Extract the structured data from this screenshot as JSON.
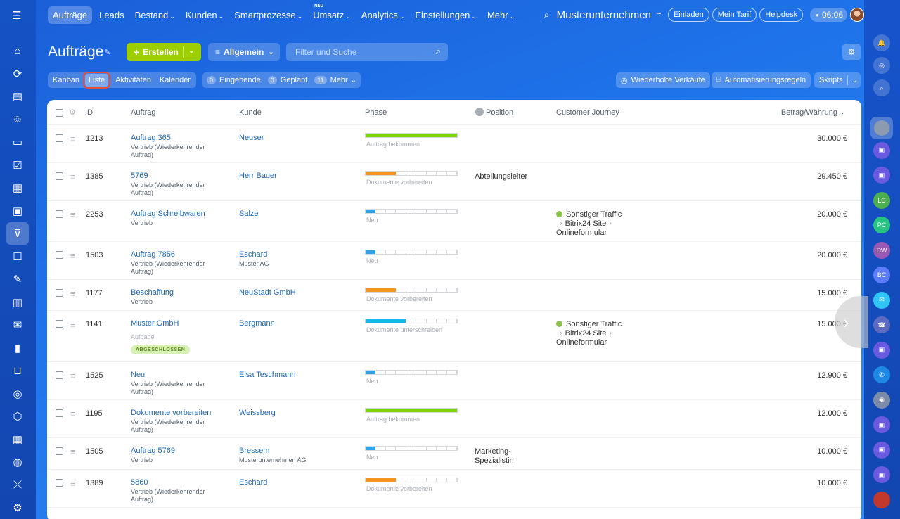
{
  "nav": {
    "items": [
      {
        "label": "Aufträge",
        "caret": false,
        "active": true
      },
      {
        "label": "Leads",
        "caret": false
      },
      {
        "label": "Bestand",
        "caret": true
      },
      {
        "label": "Kunden",
        "caret": true
      },
      {
        "label": "Smartprozesse",
        "caret": true
      },
      {
        "label": "Umsatz",
        "caret": true,
        "badge": "NEU"
      },
      {
        "label": "Analytics",
        "caret": true
      },
      {
        "label": "Einstellungen",
        "caret": true
      },
      {
        "label": "Mehr",
        "caret": true
      }
    ],
    "company": "Musterunternehmen",
    "invite": "Einladen",
    "tariff": "Mein Tarif",
    "help": "Helpdesk",
    "time": "06:06"
  },
  "header": {
    "title": "Aufträge",
    "create": "Erstellen",
    "filter": "Allgemein",
    "search_placeholder": "Filter und Suche"
  },
  "views": [
    "Kanban",
    "Liste",
    "Aktivitäten",
    "Kalender"
  ],
  "counters": [
    {
      "count": "0",
      "label": "Eingehende"
    },
    {
      "count": "0",
      "label": "Geplant"
    },
    {
      "count": "11",
      "label": "Mehr"
    }
  ],
  "tools": {
    "repeat": "Wiederholte Verkäufe",
    "automation": "Automatisierungsregeln",
    "scripts": "Skripts"
  },
  "table": {
    "headers": {
      "id": "ID",
      "deal": "Auftrag",
      "client": "Kunde",
      "phase": "Phase",
      "position": "Position",
      "journey": "Customer Journey",
      "amount": "Betrag/Währung"
    },
    "rows": [
      {
        "id": "1213",
        "name": "Auftrag 365",
        "sub": "Vertrieb (Wiederkehrender Auftrag)",
        "client": "Neuser",
        "client_sub": "",
        "phase": "Auftrag bekommen",
        "phase_color": "#7bd500",
        "phase_progress": 1.0,
        "position": "",
        "journey": [],
        "amount": "30.000 €"
      },
      {
        "id": "1385",
        "name": "5769",
        "sub": "Vertrieb (Wiederkehrender Auftrag)",
        "client": "Herr Bauer",
        "client_sub": "",
        "phase": "Dokumente vorbereiten",
        "phase_color": "#f7941d",
        "phase_progress": 0.33,
        "position": "Abteilungsleiter",
        "journey": [],
        "amount": "29.450 €"
      },
      {
        "id": "2253",
        "name": "Auftrag Schreibwaren",
        "sub": "Vertrieb",
        "client": "Salze",
        "client_sub": "",
        "phase": "Neu",
        "phase_color": "#2fa3e6",
        "phase_progress": 0.11,
        "position": "",
        "journey": [
          "Sonstiger Traffic",
          "Bitrix24 Site",
          "Onlineformular"
        ],
        "amount": "20.000 €"
      },
      {
        "id": "1503",
        "name": "Auftrag 7856",
        "sub": "Vertrieb (Wiederkehrender Auftrag)",
        "client": "Eschard",
        "client_sub": "Muster AG",
        "phase": "Neu",
        "phase_color": "#2fa3e6",
        "phase_progress": 0.11,
        "position": "",
        "journey": [],
        "amount": "20.000 €"
      },
      {
        "id": "1177",
        "name": "Beschaffung",
        "sub": "Vertrieb",
        "client": "NeuStadt GmbH",
        "client_sub": "",
        "phase": "Dokumente vorbereiten",
        "phase_color": "#f7941d",
        "phase_progress": 0.33,
        "position": "",
        "journey": [],
        "amount": "15.000 €"
      },
      {
        "id": "1141",
        "name": "Muster GmbH",
        "sub": "",
        "task": "Aufgabe",
        "badge": "ABGESCHLOSSEN",
        "client": "Bergmann",
        "client_sub": "",
        "phase": "Dokumente unterschreiben",
        "phase_color": "#12b8e8",
        "phase_progress": 0.44,
        "position": "",
        "journey": [
          "Sonstiger Traffic",
          "Bitrix24 Site",
          "Onlineformular"
        ],
        "amount": "15.000 €"
      },
      {
        "id": "1525",
        "name": "Neu",
        "sub": "Vertrieb (Wiederkehrender Auftrag)",
        "client": "Elsa Teschmann",
        "client_sub": "",
        "phase": "Neu",
        "phase_color": "#2fa3e6",
        "phase_progress": 0.11,
        "position": "",
        "journey": [],
        "amount": "12.900 €"
      },
      {
        "id": "1195",
        "name": "Dokumente vorbereiten",
        "sub": "Vertrieb (Wiederkehrender Auftrag)",
        "client": "Weissberg",
        "client_sub": "",
        "phase": "Auftrag bekommen",
        "phase_color": "#7bd500",
        "phase_progress": 1.0,
        "position": "",
        "journey": [],
        "amount": "12.000 €"
      },
      {
        "id": "1505",
        "name": "Auftrag 5769",
        "sub": "Vertrieb",
        "client": "Bressem",
        "client_sub": "Musterunternehmen AG",
        "phase": "Neu",
        "phase_color": "#2fa3e6",
        "phase_progress": 0.11,
        "position": "Marketing-Spezialistin",
        "journey": [],
        "amount": "10.000 €"
      },
      {
        "id": "1389",
        "name": "5860",
        "sub": "Vertrieb (Wiederkehrender Auftrag)",
        "client": "Eschard",
        "client_sub": "",
        "phase": "Dokumente vorbereiten",
        "phase_color": "#f7941d",
        "phase_progress": 0.33,
        "position": "",
        "journey": [],
        "amount": "10.000 €"
      }
    ]
  },
  "leftbar_icons": [
    "home-icon",
    "flow-icon",
    "tasks-icon",
    "contacts-icon",
    "inbox-icon",
    "checklist-icon",
    "calendar-icon",
    "sites-icon",
    "crm-icon",
    "chat-icon",
    "sign-icon",
    "store-icon",
    "mail-icon",
    "analytics-icon",
    "cart-icon",
    "marketing-icon",
    "products-icon",
    "planner-icon",
    "automation-icon",
    "more-icon",
    "settings-icon"
  ],
  "rightbar_icons": [
    {
      "name": "bell-icon",
      "text": "🔔",
      "color": "rgba(255,255,255,.2)"
    },
    {
      "name": "copilot-icon",
      "text": "◎",
      "color": "rgba(255,255,255,.2)"
    },
    {
      "name": "search-chat-icon",
      "text": "⌕",
      "color": "rgba(255,255,255,.2)"
    },
    {
      "name": "user-avatar",
      "text": "",
      "color": "#9aa7b8"
    },
    {
      "name": "chat-1-icon",
      "text": "▣",
      "color": "#6a5ae0"
    },
    {
      "name": "chat-2-icon",
      "text": "▣",
      "color": "#6a5ae0"
    },
    {
      "name": "chat-lc-icon",
      "text": "LC",
      "color": "#4caf50"
    },
    {
      "name": "chat-pc-icon",
      "text": "PC",
      "color": "#26c281"
    },
    {
      "name": "chat-dw-icon",
      "text": "DW",
      "color": "#9b59b6"
    },
    {
      "name": "chat-bc-icon",
      "text": "BC",
      "color": "#5c7cfa"
    },
    {
      "name": "chat-message-icon",
      "text": "✉",
      "color": "#2fc6f6"
    },
    {
      "name": "call-icon",
      "text": "☎",
      "color": "#5c6bc0"
    },
    {
      "name": "chat-3-icon",
      "text": "▣",
      "color": "#6a5ae0"
    },
    {
      "name": "phone-icon",
      "text": "✆",
      "color": "#1e88e5"
    },
    {
      "name": "bot-avatar",
      "text": "◉",
      "color": "#7c8ca8"
    },
    {
      "name": "chat-4-icon",
      "text": "▣",
      "color": "#6a5ae0"
    },
    {
      "name": "chat-5-icon",
      "text": "▣",
      "color": "#6a5ae0"
    },
    {
      "name": "chat-6-icon",
      "text": "▣",
      "color": "#6a5ae0"
    },
    {
      "name": "user-avatar-2",
      "text": "",
      "color": "#c0392b"
    }
  ]
}
